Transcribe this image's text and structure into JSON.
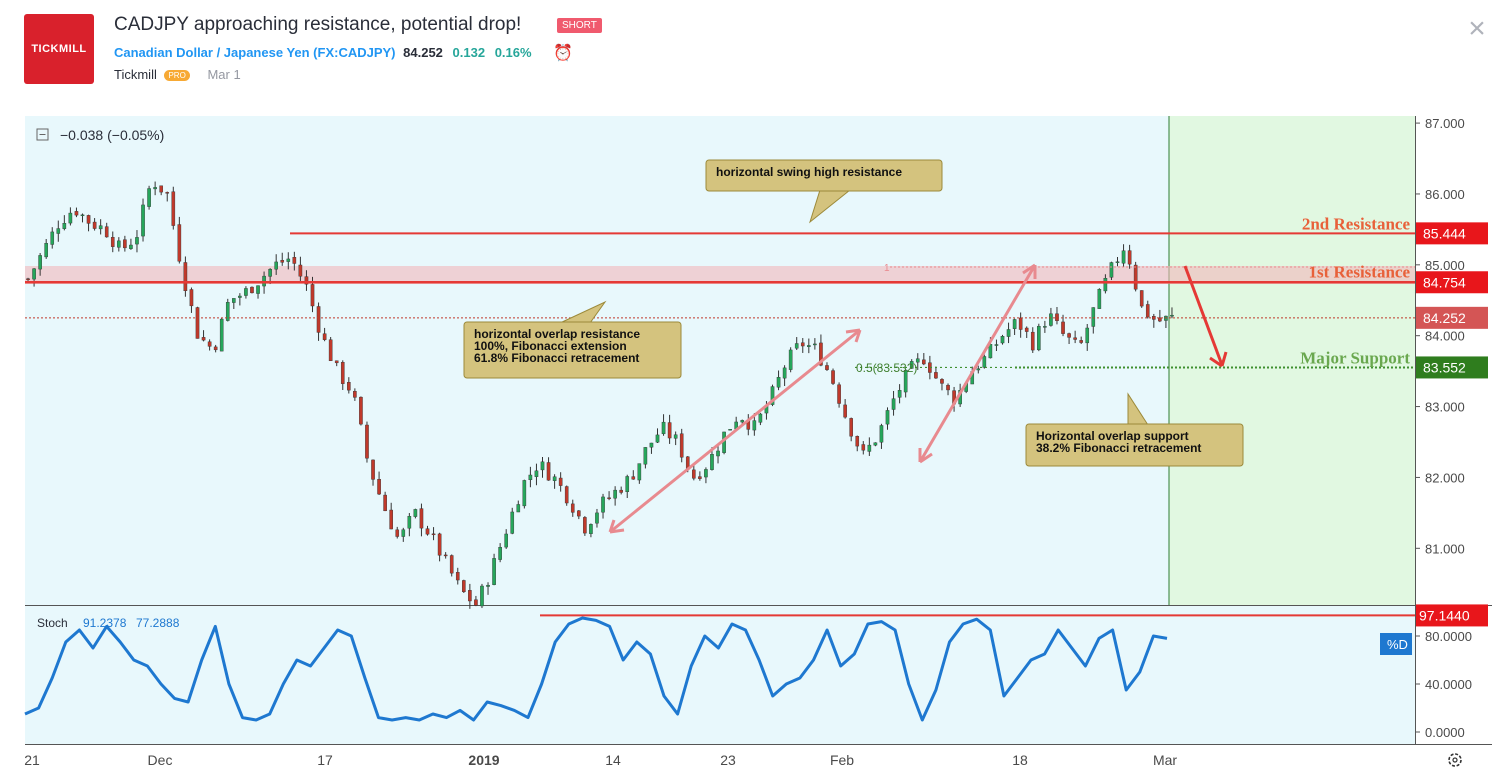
{
  "header": {
    "brand": "TICKMILL",
    "title": "CADJPY approaching resistance, potential drop!",
    "badge": "SHORT",
    "symbol_name": "Canadian Dollar / Japanese Yen (FX:CADJPY)",
    "price": "84.252",
    "change": "0.132",
    "change_pct": "0.16%",
    "author": "Tickmill",
    "author_badge": "PRO",
    "date": "Mar 1",
    "close": "×"
  },
  "colors": {
    "up": "#26a65b",
    "down": "#c0392b",
    "resistance": "#e53935",
    "support": "#3f8f2f",
    "stoch": "#1e78d0",
    "pane_bg": "#e8f8fc",
    "zone": "#e1f8e1"
  },
  "chart_data": [
    {
      "type": "candlestick",
      "title": "CADJPY",
      "change_label": "−0.038 (−0.05%)",
      "ylim": [
        80.2,
        87.1
      ],
      "y_ticks": [
        "87.000",
        "86.000",
        "85.000",
        "84.000",
        "83.000",
        "82.000",
        "81.000"
      ],
      "x_labels": [
        "21",
        "Dec",
        "17",
        "2019",
        "14",
        "23",
        "Feb",
        "18",
        "Mar"
      ],
      "close_path": [
        84.8,
        85.2,
        85.6,
        85.8,
        85.6,
        85.5,
        85.2,
        85.4,
        86.2,
        86.0,
        84.9,
        84.0,
        83.8,
        84.5,
        84.6,
        84.8,
        85.0,
        85.1,
        84.7,
        84.0,
        83.5,
        83.2,
        82.2,
        81.6,
        81.1,
        81.5,
        81.2,
        80.8,
        80.4,
        80.2,
        80.7,
        81.3,
        81.9,
        82.2,
        82.0,
        81.7,
        81.3,
        81.6,
        81.8,
        82.0,
        82.4,
        82.7,
        82.5,
        82.0,
        82.2,
        82.6,
        82.9,
        82.7,
        83.1,
        83.6,
        83.9,
        83.8,
        83.4,
        82.8,
        82.3,
        82.6,
        83.1,
        83.5,
        83.7,
        83.3,
        83.1,
        83.5,
        83.7,
        84.0,
        84.2,
        83.9,
        84.3,
        84.0,
        83.8,
        84.4,
        84.9,
        85.3,
        84.4,
        84.2,
        84.25
      ],
      "series": [
        {
          "name": "2nd Resistance",
          "values": [
            85.444
          ]
        },
        {
          "name": "1st Resistance",
          "values": [
            84.754
          ]
        },
        {
          "name": "Major Support",
          "values": [
            83.552
          ]
        },
        {
          "name": "Last price",
          "values": [
            84.252
          ]
        }
      ],
      "levels": [
        {
          "label": "2nd Resistance",
          "value": 85.444,
          "tag": "85.444"
        },
        {
          "label": "1st Resistance",
          "value": 84.754,
          "tag": "84.754"
        },
        {
          "label": "Major Support",
          "value": 83.552,
          "tag": "83.552"
        },
        {
          "label": "Last price",
          "value": 84.252,
          "tag": "84.252"
        }
      ],
      "fib_labels": {
        "ext_100": "1",
        "retr_50": "0.5(83.532)"
      },
      "annotations": [
        {
          "text": [
            "horizontal swing high resistance"
          ]
        },
        {
          "text": [
            "horizontal overlap resistance",
            "100%, Fibonacci extension",
            "61.8% Fibonacci retracement"
          ]
        },
        {
          "text": [
            "Horizontal overlap support",
            "38.2% Fibonacci retracement"
          ]
        }
      ]
    },
    {
      "type": "line",
      "title": "Stoch",
      "values_label": [
        "91.2378",
        "77.2888"
      ],
      "ylim": [
        -10,
        105
      ],
      "y_ticks": [
        "80.0000",
        "40.0000",
        "0.0000"
      ],
      "max_level": {
        "value": 97.144,
        "tag": "97.1440"
      },
      "legend_tag": "%D",
      "series": [
        {
          "name": "%D",
          "values": [
            15,
            20,
            45,
            75,
            85,
            70,
            88,
            75,
            60,
            55,
            40,
            28,
            25,
            60,
            88,
            40,
            12,
            10,
            15,
            40,
            60,
            55,
            70,
            85,
            80,
            45,
            12,
            10,
            12,
            10,
            15,
            12,
            18,
            10,
            25,
            22,
            18,
            12,
            40,
            75,
            90,
            95,
            93,
            88,
            60,
            75,
            65,
            30,
            15,
            55,
            80,
            70,
            90,
            85,
            60,
            30,
            40,
            45,
            60,
            85,
            55,
            65,
            90,
            92,
            85,
            40,
            10,
            35,
            75,
            90,
            94,
            85,
            30,
            45,
            60,
            65,
            85,
            70,
            55,
            78,
            85,
            35,
            50,
            80,
            78
          ]
        }
      ]
    }
  ],
  "settings_icon": "gear-icon"
}
